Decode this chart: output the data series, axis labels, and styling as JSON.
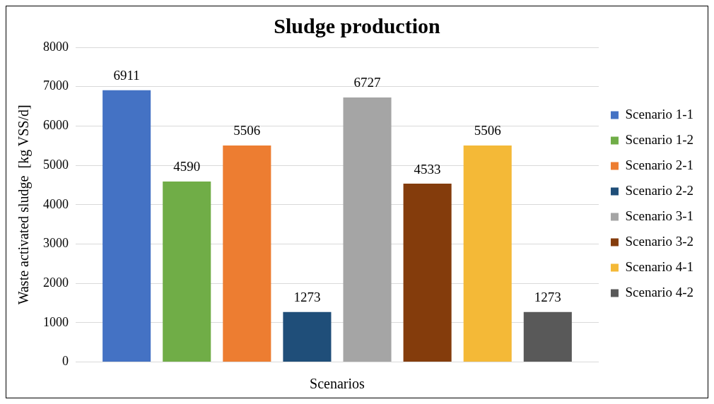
{
  "chart_data": {
    "type": "bar",
    "title": "Sludge production",
    "xlabel": "Scenarios",
    "ylabel": "Waste activated sludge  [kg VSS/d]",
    "categories": [
      null
    ],
    "series": [
      {
        "name": "Scenario 1-1",
        "color": "#4472c4",
        "values": [
          6911
        ]
      },
      {
        "name": "Scenario 1-2",
        "color": "#70ad47",
        "values": [
          4590
        ]
      },
      {
        "name": "Scenario 2-1",
        "color": "#ed7d31",
        "values": [
          5506
        ]
      },
      {
        "name": "Scenario 2-2",
        "color": "#1f4e79",
        "values": [
          1273
        ]
      },
      {
        "name": "Scenario 3-1",
        "color": "#a5a5a5",
        "values": [
          6727
        ]
      },
      {
        "name": "Scenario 3-2",
        "color": "#843c0c",
        "values": [
          4533
        ]
      },
      {
        "name": "Scenario 4-1",
        "color": "#f4b937",
        "values": [
          5506
        ]
      },
      {
        "name": "Scenario 4-2",
        "color": "#595959",
        "values": [
          1273
        ]
      }
    ],
    "ylim": [
      0,
      8000
    ],
    "yticks": [
      0,
      1000,
      2000,
      3000,
      4000,
      5000,
      6000,
      7000,
      8000
    ],
    "grid": "y",
    "legend": "right",
    "data_labels": true
  }
}
